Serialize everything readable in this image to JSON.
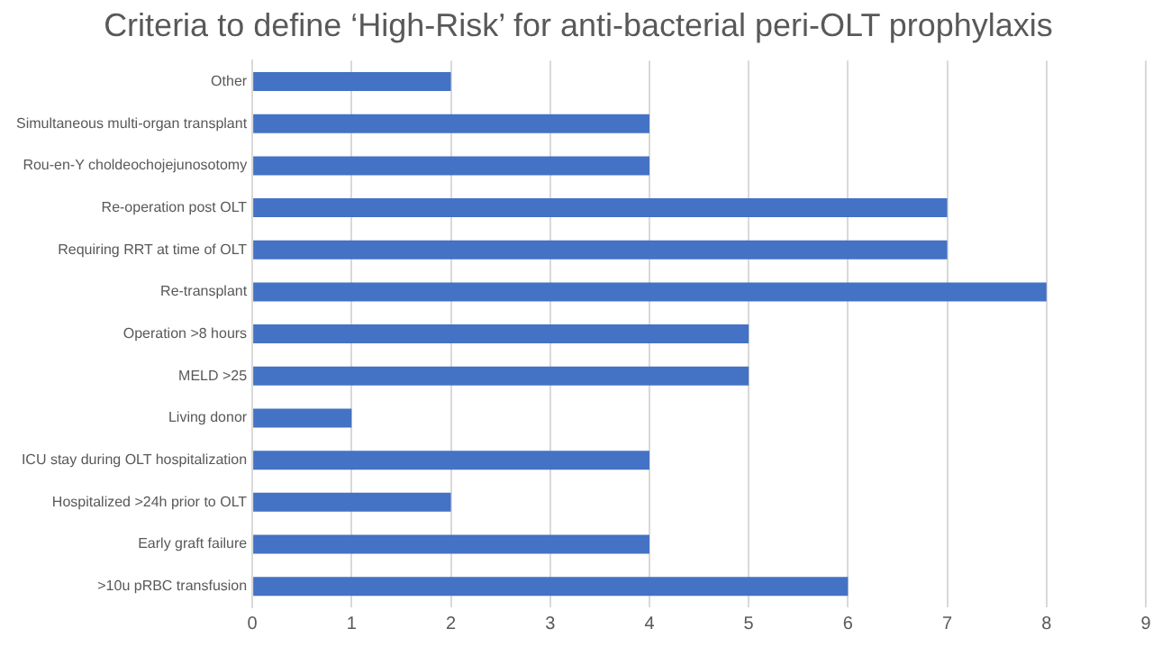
{
  "chart_data": {
    "type": "bar",
    "orientation": "horizontal",
    "title": "Criteria to define ‘High-Risk’ for anti-bacterial peri-OLT prophylaxis",
    "categories": [
      "Other",
      "Simultaneous multi-organ transplant",
      "Rou-en-Y choldeochojejunosotomy",
      "Re-operation post OLT",
      "Requiring RRT at time of OLT",
      "Re-transplant",
      "Operation >8 hours",
      "MELD >25",
      "Living donor",
      "ICU stay during OLT hospitalization",
      "Hospitalized >24h prior to OLT",
      "Early graft failure",
      ">10u pRBC transfusion"
    ],
    "values": [
      2,
      4,
      4,
      7,
      7,
      8,
      5,
      5,
      1,
      4,
      2,
      4,
      6
    ],
    "color": "#4472c4",
    "xlim": [
      0,
      9
    ],
    "xticks": [
      0,
      1,
      2,
      3,
      4,
      5,
      6,
      7,
      8,
      9
    ],
    "grid": "x",
    "legend": false
  }
}
